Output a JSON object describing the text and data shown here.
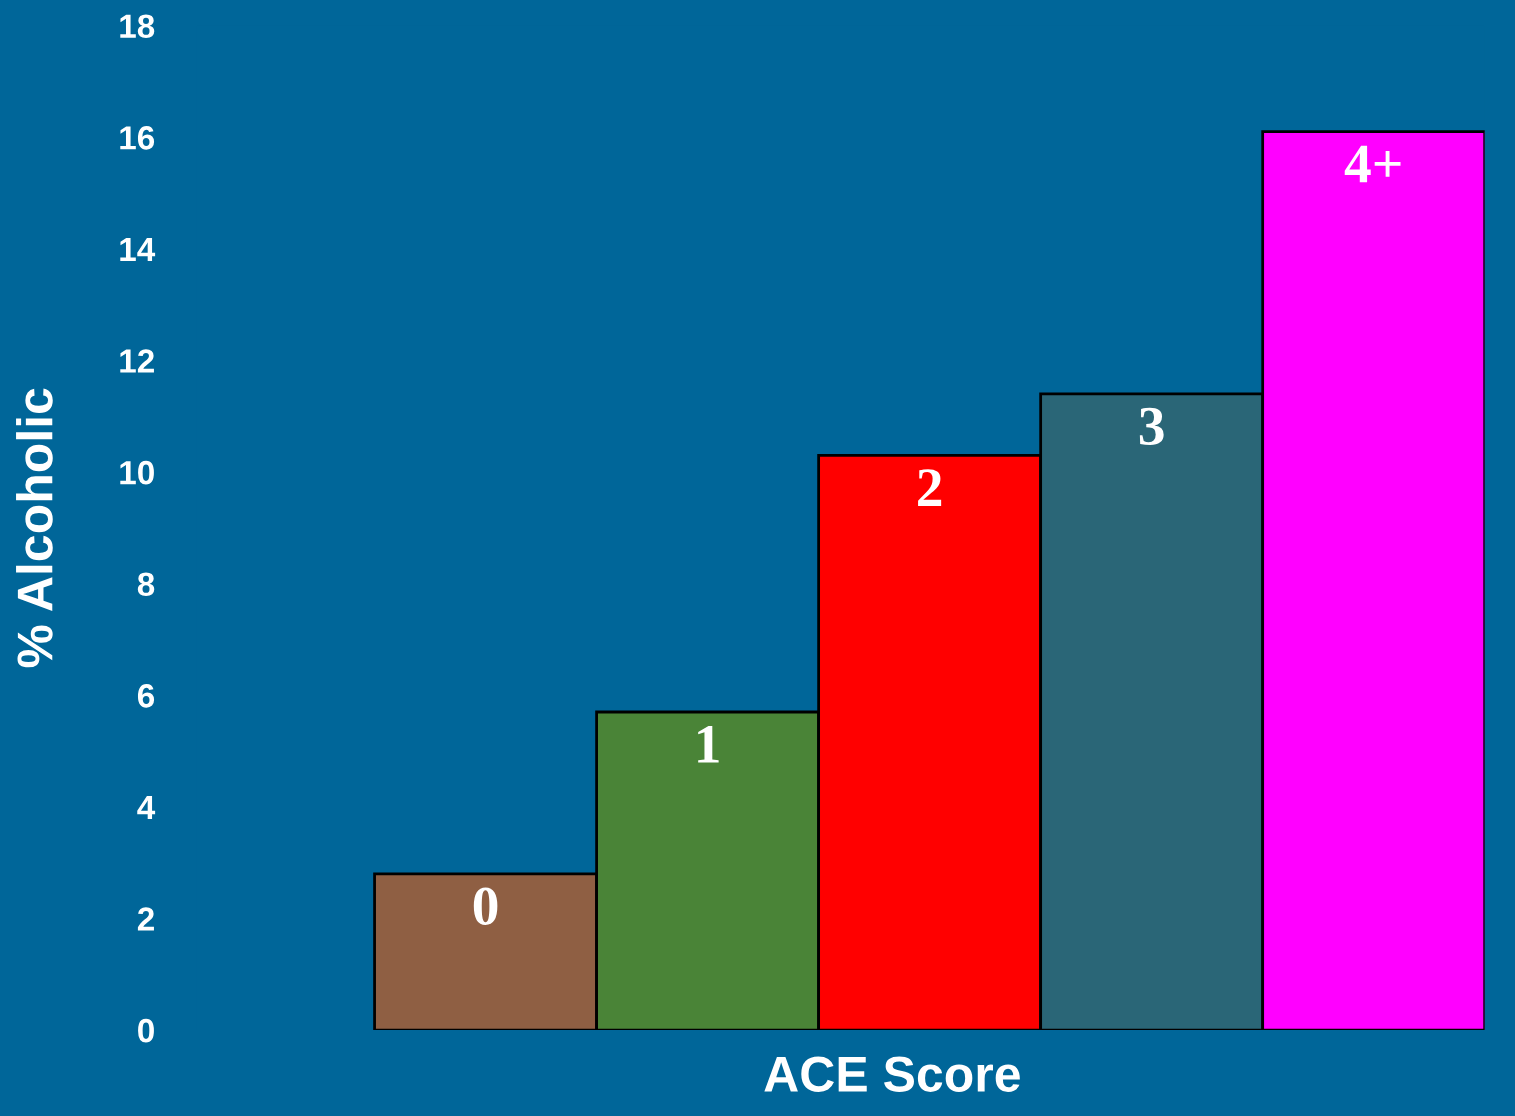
{
  "chart_data": {
    "type": "bar",
    "xlabel": "ACE Score",
    "ylabel": "% Alcoholic",
    "categories": [
      "0",
      "1",
      "2",
      "3",
      "4+"
    ],
    "values": [
      2.8,
      5.7,
      10.3,
      11.4,
      16.1
    ],
    "colors": [
      "#8f5f43",
      "#4a8437",
      "#ff0000",
      "#2a6677",
      "#ff00ff"
    ],
    "ylim": [
      0,
      18
    ],
    "yticks": [
      0,
      2,
      4,
      6,
      8,
      10,
      12,
      14,
      16,
      18
    ],
    "grid": false
  }
}
